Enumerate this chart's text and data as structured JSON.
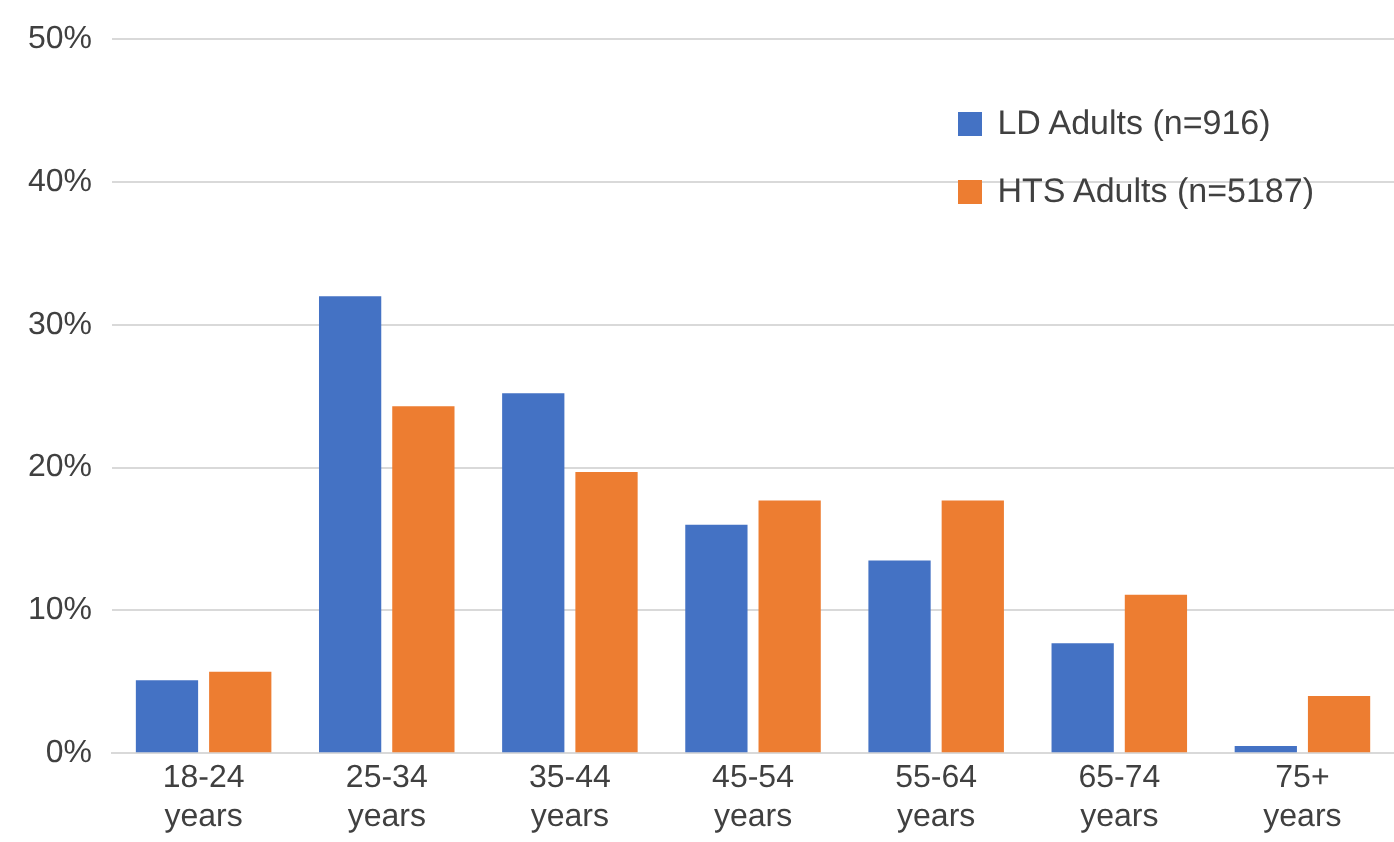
{
  "chart_data": {
    "type": "bar",
    "categories": [
      "18-24 years",
      "25-34 years",
      "35-44 years",
      "45-54 years",
      "55-64 years",
      "65-74 years",
      "75+ years"
    ],
    "series": [
      {
        "name": "LD Adults (n=916)",
        "color": "#4472c4",
        "values": [
          5.1,
          32.0,
          25.2,
          16.0,
          13.5,
          7.7,
          0.5
        ]
      },
      {
        "name": "HTS Adults (n=5187)",
        "color": "#ed7d31",
        "values": [
          5.7,
          24.3,
          19.7,
          17.7,
          17.7,
          11.1,
          4.0
        ]
      }
    ],
    "ylim": [
      0,
      50
    ],
    "yticks": [
      {
        "value": 0,
        "label": "0%"
      },
      {
        "value": 10,
        "label": "10%"
      },
      {
        "value": 20,
        "label": "20%"
      },
      {
        "value": 30,
        "label": "30%"
      },
      {
        "value": 40,
        "label": "40%"
      },
      {
        "value": 50,
        "label": "50%"
      }
    ],
    "grid": "y",
    "legend": "top right"
  }
}
